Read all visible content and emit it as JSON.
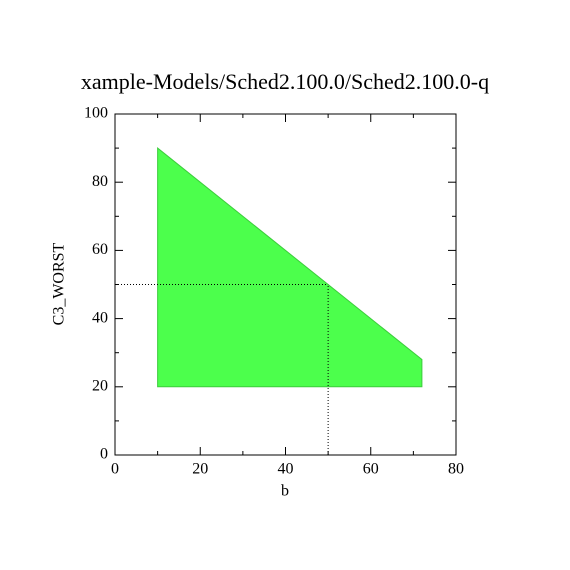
{
  "chart_data": {
    "type": "polygon",
    "title": "xample-Models/Sched2.100.0/Sched2.100.0-q",
    "x_label": "b",
    "y_label": "C3_WORST",
    "x": [
      10,
      10,
      72,
      72
    ],
    "y": [
      20,
      90,
      28,
      20
    ],
    "color": "#4cff4c",
    "edge_color": "#3ccc3c",
    "marker": {
      "x": 50,
      "y": 50
    },
    "xlim": [
      0,
      80
    ],
    "ylim": [
      0,
      100
    ],
    "xticks": [
      0,
      20,
      40,
      60,
      80
    ],
    "yticks": [
      0,
      20,
      40,
      60,
      80,
      100
    ],
    "xminorticks": [
      10,
      30,
      50,
      70
    ],
    "yminorticks": [
      10,
      30,
      50,
      70,
      90
    ]
  }
}
